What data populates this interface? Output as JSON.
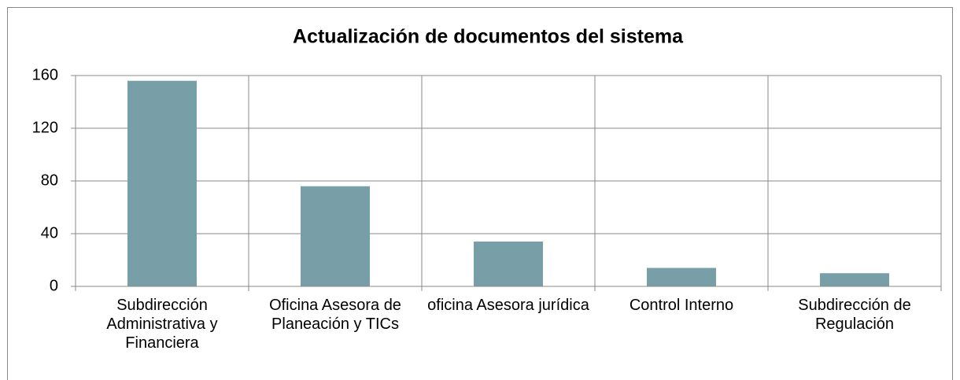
{
  "chart_data": {
    "type": "bar",
    "title": "Actualización de documentos del sistema",
    "categories": [
      "Subdirección Administrativa y Financiera",
      "Oficina Asesora de Planeación y TICs",
      "oficina Asesora jurídica",
      "Control Interno",
      "Subdirección de Regulación"
    ],
    "values": [
      156,
      76,
      34,
      14,
      10
    ],
    "color": "#789ea7",
    "ylim": [
      0,
      160
    ],
    "yticks": [
      0,
      40,
      80,
      120,
      160
    ],
    "grid": true
  }
}
